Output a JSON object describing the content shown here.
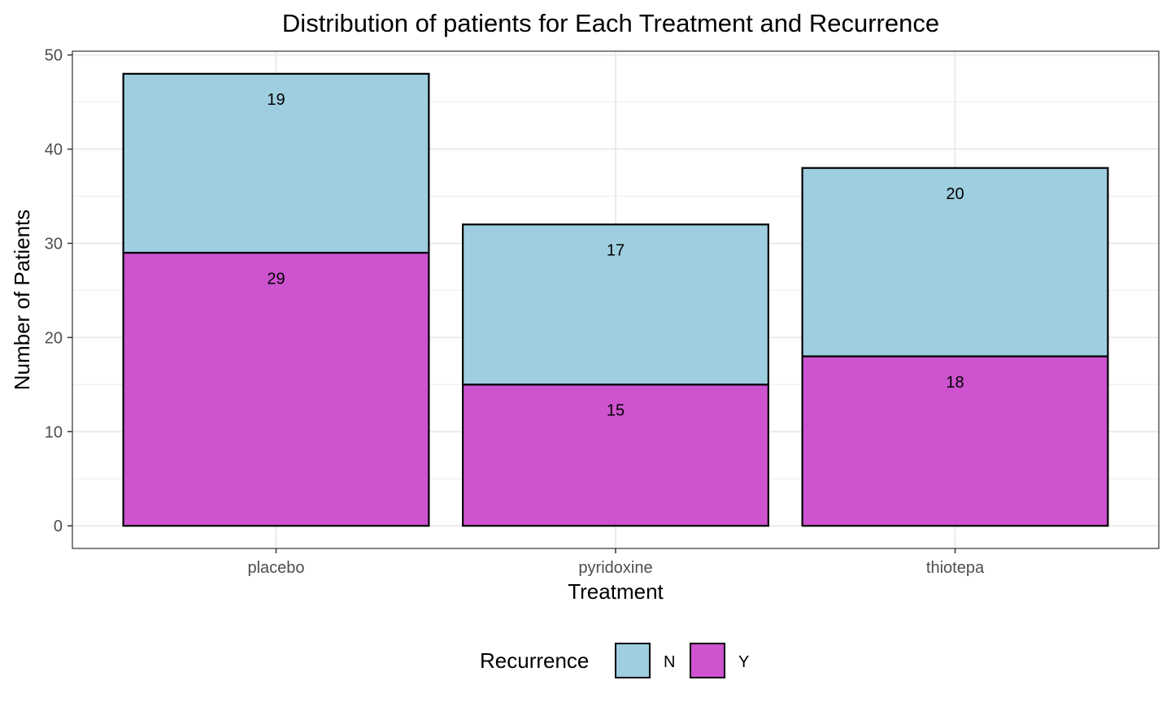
{
  "chart_data": {
    "type": "bar",
    "stacked": true,
    "title": "Distribution of patients for Each Treatment and Recurrence",
    "xlabel": "Treatment",
    "ylabel": "Number of Patients",
    "categories": [
      "placebo",
      "pyridoxine",
      "thiotepa"
    ],
    "series": [
      {
        "name": "Y",
        "color": "#CD53CF",
        "values": [
          29,
          15,
          18
        ]
      },
      {
        "name": "N",
        "color": "#9ECEE0",
        "values": [
          19,
          17,
          20
        ]
      }
    ],
    "ylim": [
      -2.4,
      50.4
    ],
    "yticks": [
      0,
      10,
      20,
      30,
      40,
      50
    ],
    "grid": true,
    "legend": {
      "title": "Recurrence",
      "position": "bottom",
      "entries": [
        {
          "label": "N",
          "color": "#9ECEE0"
        },
        {
          "label": "Y",
          "color": "#CD53CF"
        }
      ]
    }
  }
}
